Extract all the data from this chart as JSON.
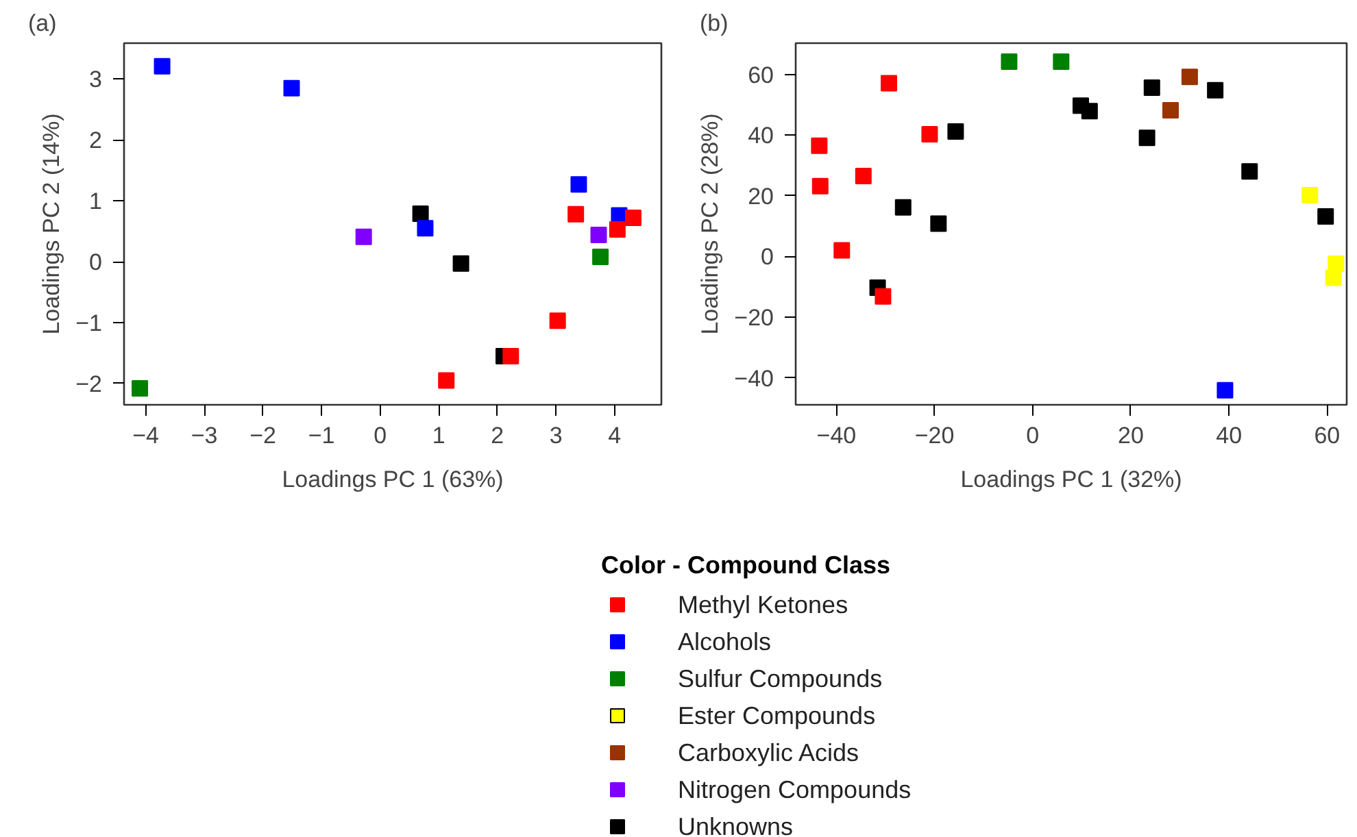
{
  "chart_data": [
    {
      "type": "scatter",
      "title": "(a)",
      "xlabel": "Loadings PC 1 (63%)",
      "ylabel": "Loadings PC 2 (14%)",
      "xlim": [
        -4.37,
        4.8
      ],
      "ylim": [
        -2.35,
        3.59
      ],
      "xticks": [
        -4,
        -3,
        -2,
        -1,
        0,
        1,
        2,
        3,
        4
      ],
      "yticks": [
        -2,
        -1,
        0,
        1,
        2,
        3
      ],
      "grid": false,
      "marker": "square",
      "legend": "bottom",
      "legend_title": "Color - Compound Class",
      "series": [
        {
          "name": "Methyl Ketones",
          "color": "#ff0000",
          "x": [
            1.13,
            2.23,
            3.03,
            3.34,
            4.05,
            4.32
          ],
          "values": [
            -1.95,
            -1.55,
            -0.97,
            0.78,
            0.53,
            0.72
          ]
        },
        {
          "name": "Alcohols",
          "color": "#0000ff",
          "x": [
            -3.72,
            -1.51,
            0.77,
            3.39,
            4.08
          ],
          "values": [
            3.21,
            2.85,
            0.55,
            1.27,
            0.76
          ]
        },
        {
          "name": "Sulfur Compounds",
          "color": "#008000",
          "x": [
            -4.1,
            3.76
          ],
          "values": [
            -2.08,
            0.08
          ]
        },
        {
          "name": "Ester Compounds",
          "color": "#ffff00"
        },
        {
          "name": "Carboxylic Acids",
          "color": "#993300"
        },
        {
          "name": "Nitrogen Compounds",
          "color": "#8000ff",
          "x": [
            -0.28,
            3.73
          ],
          "values": [
            0.41,
            0.44
          ]
        },
        {
          "name": "Unknowns",
          "color": "#000000",
          "x": [
            0.69,
            1.38,
            2.11
          ],
          "values": [
            0.79,
            -0.03,
            -1.55
          ]
        }
      ]
    },
    {
      "type": "scatter",
      "title": "(b)",
      "xlabel": "Loadings PC 1 (32%)",
      "ylabel": "Loadings PC 2 (28%)",
      "xlim": [
        -48.3,
        64
      ],
      "ylim": [
        -48.9,
        70.3
      ],
      "xticks": [
        -40,
        -20,
        0,
        20,
        40,
        60
      ],
      "yticks": [
        -40,
        -20,
        0,
        20,
        40,
        60
      ],
      "grid": false,
      "marker": "square",
      "series": [
        {
          "color": "#ff0000",
          "x": [
            -43.5,
            -43.3,
            -34.5,
            -38.9,
            -29.3,
            -21,
            -30.5
          ],
          "values": [
            36.5,
            23.2,
            26.5,
            2.0,
            57.1,
            40.3,
            -13.2
          ]
        },
        {
          "color": "#0000ff",
          "x": [
            39.2
          ],
          "values": [
            -44.1
          ]
        },
        {
          "color": "#008000",
          "x": [
            -4.8,
            5.8
          ],
          "values": [
            64.2,
            64.2
          ]
        },
        {
          "color": "#ffff00",
          "x": [
            56.5,
            61.8,
            61.3
          ],
          "values": [
            20.2,
            -2.4,
            -7.0
          ]
        },
        {
          "color": "#993300",
          "x": [
            32.0,
            28.1
          ],
          "values": [
            59.2,
            48.2
          ]
        },
        {
          "color": "#000000",
          "x": [
            -15.7,
            -26.4,
            -19.2,
            -31.6,
            9.8,
            11.6,
            24.3,
            23.3,
            37.2,
            44.2,
            59.7
          ],
          "values": [
            41.2,
            16.2,
            10.8,
            -10.3,
            49.7,
            47.9,
            55.6,
            39.1,
            54.8,
            28.0,
            13.2
          ]
        }
      ]
    }
  ]
}
